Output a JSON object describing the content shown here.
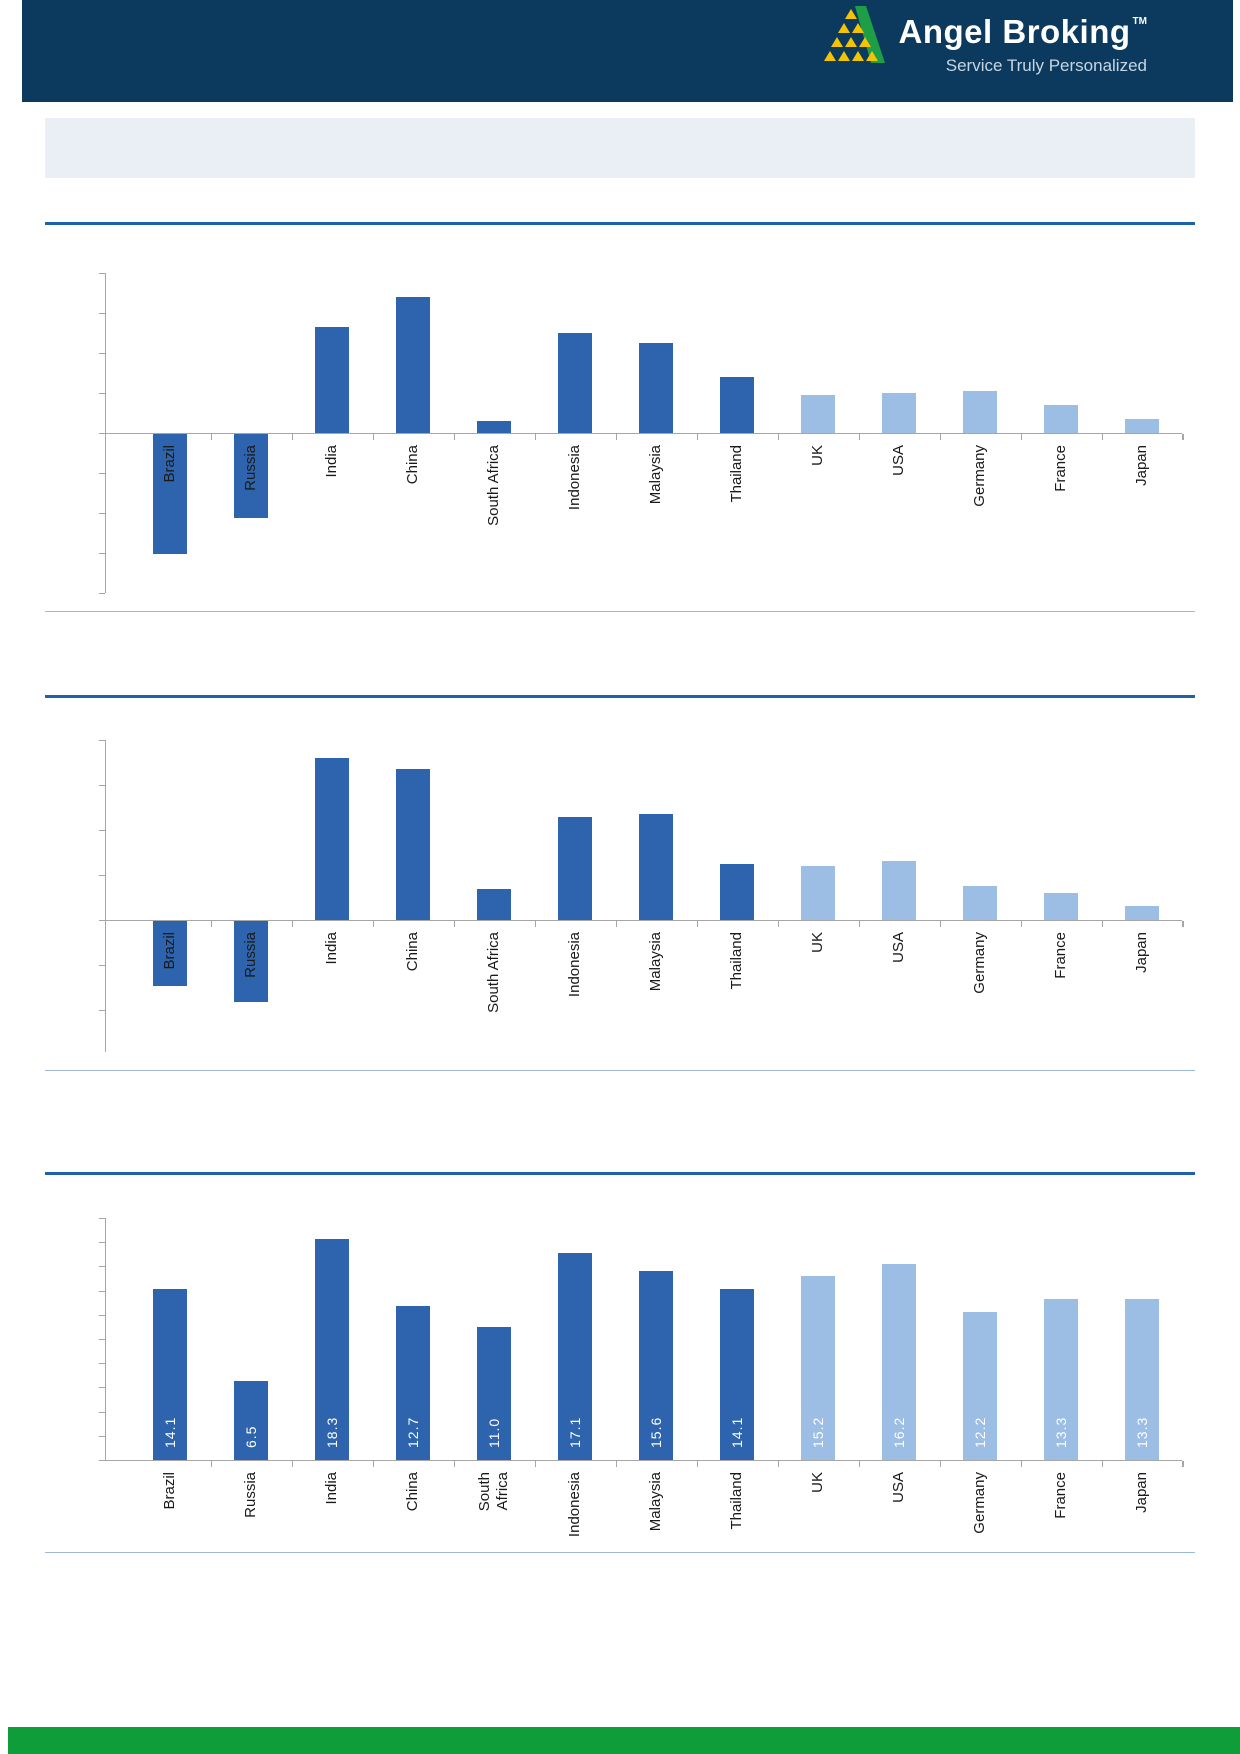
{
  "header": {
    "title": "Angel Broking",
    "tm": "TM",
    "tagline": "Service Truly Personalized"
  },
  "page": {
    "header_navy": "#0b3a5e",
    "accent_rule_blue": "#2061ac",
    "separator_light_blue": "#9dbbd9",
    "band_bg": "#eaeff5",
    "bar_dark_blue": "#2e64ad",
    "bar_light_blue": "#9cbee4",
    "axis_gray": "#a6a6a6",
    "footer_green": "#0f9d39",
    "logo_green": "#1e9e46",
    "logo_yellow": "#f5c400"
  },
  "chart_data": [
    {
      "id": "chart-1",
      "type": "bar",
      "title": "",
      "categories": [
        "Brazil",
        "Russia",
        "India",
        "China",
        "South Africa",
        "Indonesia",
        "Malaysia",
        "Thailand",
        "UK",
        "USA",
        "Germany",
        "France",
        "Japan"
      ],
      "values": [
        -6.0,
        -4.2,
        5.3,
        6.8,
        0.6,
        5.0,
        4.5,
        2.8,
        1.9,
        2.0,
        2.1,
        1.4,
        0.7
      ],
      "groups": [
        "emerging",
        "emerging",
        "emerging",
        "emerging",
        "emerging",
        "emerging",
        "emerging",
        "emerging",
        "developed",
        "developed",
        "developed",
        "developed",
        "developed"
      ],
      "value_labels": null,
      "ylim": [
        -8,
        8
      ],
      "tick_step": 2,
      "y_axis_labels_visible": false,
      "values_estimated_from_gridlines": true,
      "grid": false,
      "legend": "none"
    },
    {
      "id": "chart-2",
      "type": "bar",
      "title": "",
      "categories": [
        "Brazil",
        "Russia",
        "India",
        "China",
        "South Africa",
        "Indonesia",
        "Malaysia",
        "Thailand",
        "UK",
        "USA",
        "Germany",
        "France",
        "Japan"
      ],
      "values": [
        -2.9,
        -3.6,
        7.2,
        6.7,
        1.4,
        4.6,
        4.7,
        2.5,
        2.4,
        2.6,
        1.5,
        1.2,
        0.6
      ],
      "groups": [
        "emerging",
        "emerging",
        "emerging",
        "emerging",
        "emerging",
        "emerging",
        "emerging",
        "emerging",
        "developed",
        "developed",
        "developed",
        "developed",
        "developed"
      ],
      "value_labels": null,
      "ylim": [
        -6,
        8
      ],
      "tick_step": 2,
      "y_axis_labels_visible": false,
      "values_estimated_from_gridlines": true,
      "grid": false,
      "legend": "none"
    },
    {
      "id": "chart-3",
      "type": "bar",
      "title": "",
      "categories": [
        "Brazil",
        "Russia",
        "India",
        "China",
        "South\nAfrica",
        "Indonesia",
        "Malaysia",
        "Thailand",
        "UK",
        "USA",
        "Germany",
        "France",
        "Japan"
      ],
      "values": [
        14.1,
        6.5,
        18.3,
        12.7,
        11.0,
        17.1,
        15.6,
        14.1,
        15.2,
        16.2,
        12.2,
        13.3,
        13.3
      ],
      "groups": [
        "emerging",
        "emerging",
        "emerging",
        "emerging",
        "emerging",
        "emerging",
        "emerging",
        "emerging",
        "developed",
        "developed",
        "developed",
        "developed",
        "developed"
      ],
      "value_labels": [
        "14.1",
        "6.5",
        "18.3",
        "12.7",
        "11.0",
        "17.1",
        "15.6",
        "14.1",
        "15.2",
        "16.2",
        "12.2",
        "13.3",
        "13.3"
      ],
      "ylim": [
        0,
        20
      ],
      "tick_step": 2,
      "y_axis_labels_visible": false,
      "grid": false,
      "legend": "none"
    }
  ]
}
